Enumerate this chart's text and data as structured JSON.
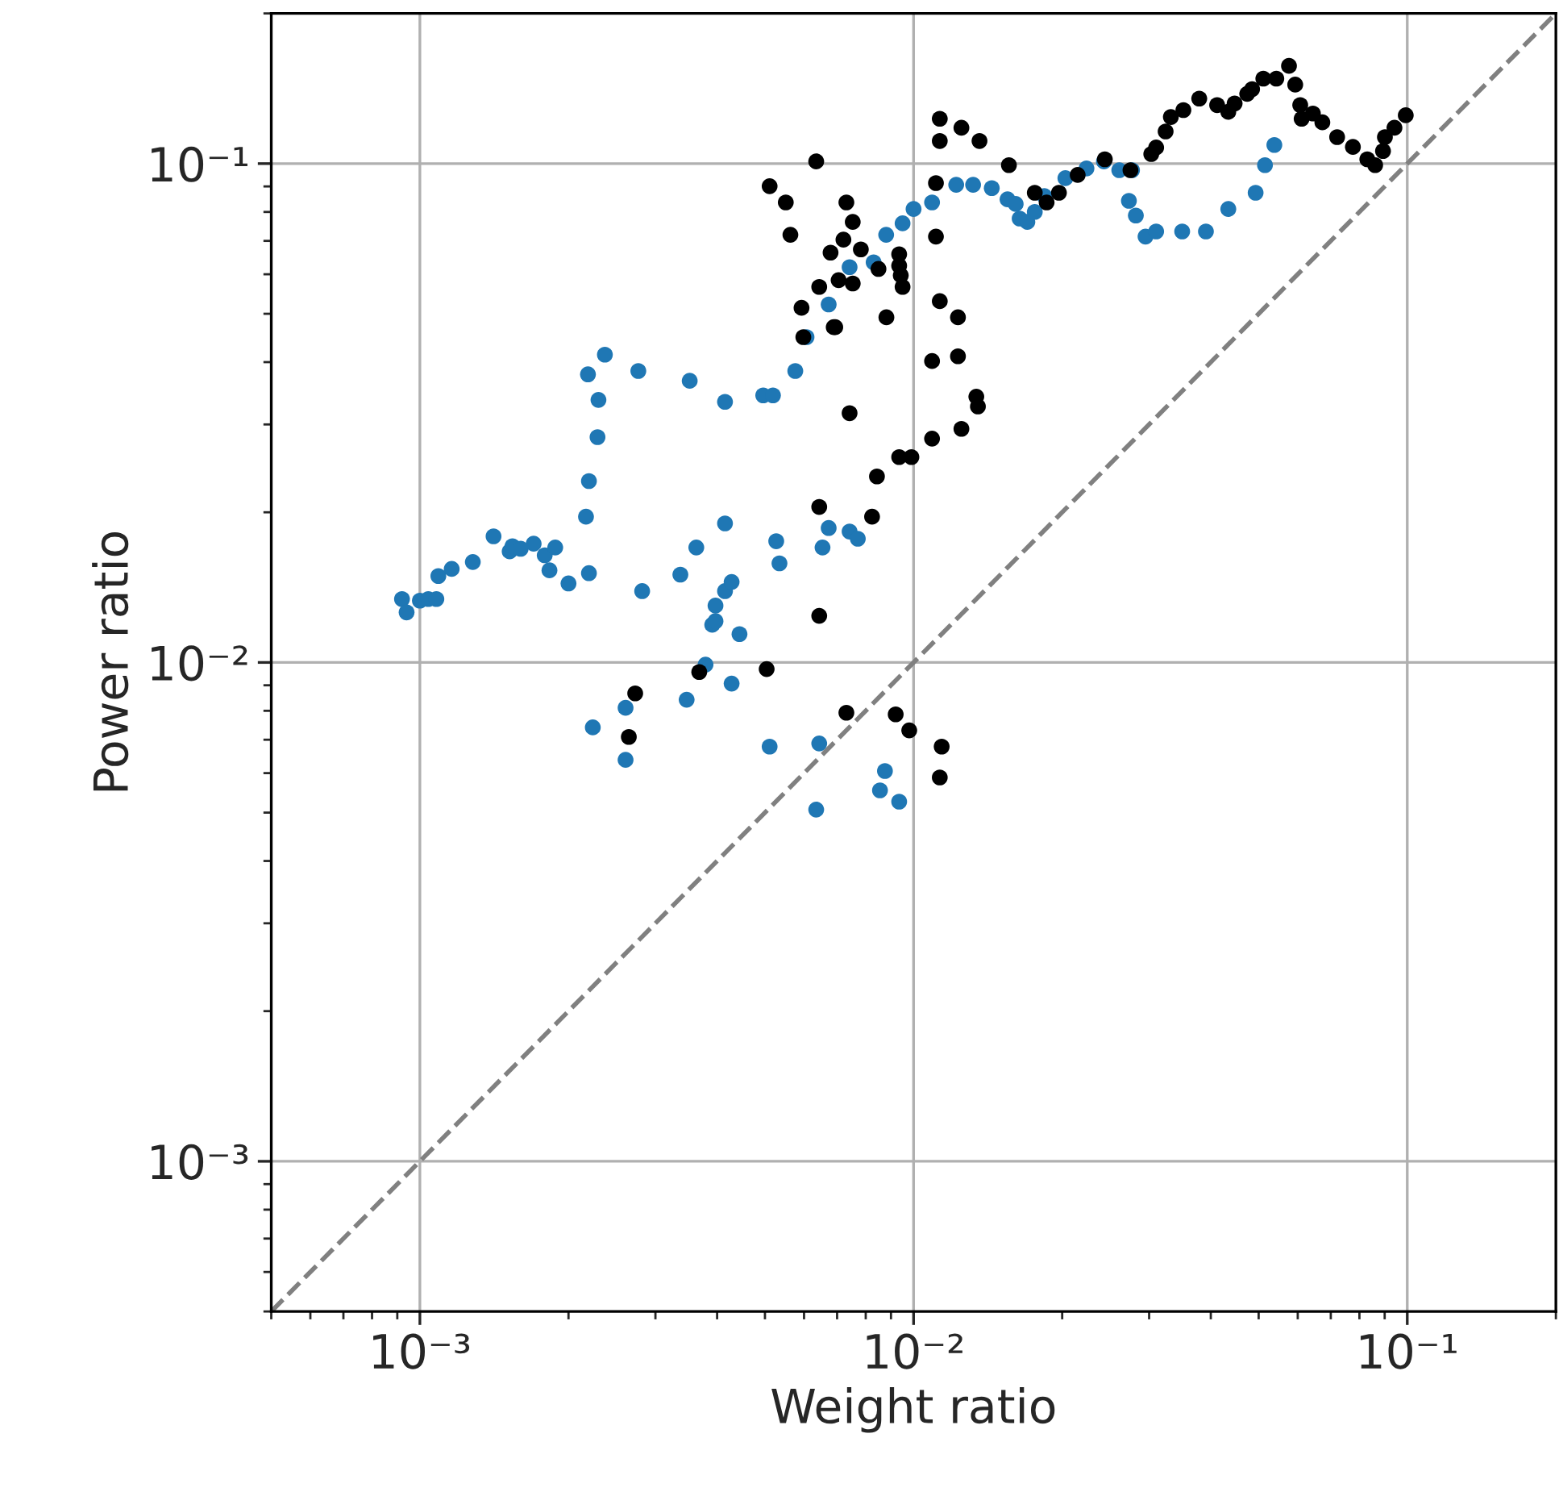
{
  "chart_data": {
    "type": "scatter",
    "xlabel": "Weight ratio",
    "ylabel": "Power ratio",
    "log": "xy",
    "grid": true,
    "marker": "circle",
    "xlim": [
      0.0005,
      0.2
    ],
    "ylim": [
      0.0005,
      0.2
    ],
    "xticks": [
      {
        "value": 0.001,
        "label": "10⁻³"
      },
      {
        "value": 0.01,
        "label": "10⁻²"
      },
      {
        "value": 0.1,
        "label": "10⁻¹"
      }
    ],
    "yticks": [
      {
        "value": 0.001,
        "label": "10⁻³"
      },
      {
        "value": 0.01,
        "label": "10⁻²"
      },
      {
        "value": 0.1,
        "label": "10⁻¹"
      }
    ],
    "series": [
      {
        "type": "line",
        "color": "#808080",
        "line_style": "dashed",
        "marker": "none",
        "x": [
          0.0005,
          0.2
        ],
        "values": [
          0.0005,
          0.2
        ]
      },
      {
        "color": "#1f77b4",
        "x": [
          0.00092,
          0.00094,
          0.001,
          0.00104,
          0.00108,
          0.00109,
          0.00116,
          0.00128,
          0.00141,
          0.00152,
          0.00154,
          0.0016,
          0.0017,
          0.00179,
          0.00183,
          0.00188,
          0.002,
          0.0022,
          0.00217,
          0.0022,
          0.00229,
          0.0023,
          0.00219,
          0.00237,
          0.00277,
          0.00352,
          0.00415,
          0.00496,
          0.00519,
          0.00576,
          0.00607,
          0.00673,
          0.00742,
          0.0083,
          0.0088,
          0.0095,
          0.01,
          0.0109,
          0.0122,
          0.0132,
          0.0144,
          0.0155,
          0.0161,
          0.0164,
          0.017,
          0.0176,
          0.0184,
          0.0203,
          0.0224,
          0.0243,
          0.0261,
          0.0277,
          0.0273,
          0.0282,
          0.0295,
          0.031,
          0.035,
          0.0391,
          0.0434,
          0.0493,
          0.0515,
          0.0538,
          0.00224,
          0.00261,
          0.00261,
          0.00347,
          0.00428,
          0.00379,
          0.00444,
          0.00391,
          0.00397,
          0.00397,
          0.00415,
          0.00428,
          0.00337,
          0.00282,
          0.00363,
          0.00415,
          0.00527,
          0.00535,
          0.00511,
          0.00644,
          0.00635,
          0.00654,
          0.00673,
          0.00742,
          0.00771,
          0.00875,
          0.00855,
          0.00935
        ],
        "values": [
          0.0134,
          0.0126,
          0.0133,
          0.0134,
          0.0134,
          0.0149,
          0.0154,
          0.0159,
          0.0179,
          0.0167,
          0.0171,
          0.0169,
          0.0173,
          0.0164,
          0.0153,
          0.017,
          0.0144,
          0.0151,
          0.0196,
          0.0231,
          0.0283,
          0.0336,
          0.0378,
          0.0414,
          0.0384,
          0.0367,
          0.0333,
          0.0343,
          0.0343,
          0.0384,
          0.0449,
          0.0522,
          0.062,
          0.0634,
          0.072,
          0.0759,
          0.0811,
          0.0836,
          0.0907,
          0.0907,
          0.0893,
          0.0848,
          0.083,
          0.0776,
          0.0764,
          0.08,
          0.0861,
          0.0935,
          0.0978,
          0.101,
          0.097,
          0.097,
          0.0842,
          0.0787,
          0.0714,
          0.0731,
          0.0731,
          0.0731,
          0.0811,
          0.0874,
          0.0993,
          0.109,
          0.00741,
          0.00811,
          0.00638,
          0.00842,
          0.00907,
          0.0099,
          0.0114,
          0.0119,
          0.0121,
          0.013,
          0.0139,
          0.0145,
          0.015,
          0.0139,
          0.017,
          0.019,
          0.0175,
          0.0158,
          0.00678,
          0.00688,
          0.00507,
          0.017,
          0.0186,
          0.0183,
          0.0177,
          0.00606,
          0.00554,
          0.00526
        ]
      },
      {
        "color": "#000000",
        "x": [
          0.00694,
          0.00742,
          0.00644,
          0.00644,
          0.00504,
          0.00368,
          0.00273,
          0.00265,
          0.00731,
          0.00635,
          0.00511,
          0.00551,
          0.00563,
          0.00731,
          0.00753,
          0.00721,
          0.00679,
          0.00782,
          0.00849,
          0.00935,
          0.00935,
          0.00942,
          0.0095,
          0.00705,
          0.00753,
          0.00644,
          0.00593,
          0.00689,
          0.00881,
          0.00598,
          0.0113,
          0.0113,
          0.0125,
          0.0136,
          0.0156,
          0.0111,
          0.0111,
          0.0113,
          0.0123,
          0.0109,
          0.0123,
          0.0134,
          0.0135,
          0.0125,
          0.0109,
          0.00935,
          0.0099,
          0.00843,
          0.00824,
          0.0092,
          0.0098,
          0.0114,
          0.0113,
          0.0176,
          0.0186,
          0.0197,
          0.0215,
          0.0244,
          0.0275,
          0.0303,
          0.031,
          0.0324,
          0.0332,
          0.0352,
          0.0379,
          0.0412,
          0.0434,
          0.0447,
          0.0474,
          0.0485,
          0.0511,
          0.0543,
          0.0576,
          0.0593,
          0.0607,
          0.0611,
          0.0644,
          0.0673,
          0.0721,
          0.0776,
          0.083,
          0.0861,
          0.0893,
          0.0901,
          0.0942,
          0.0993
        ],
        "values": [
          0.047,
          0.0316,
          0.0205,
          0.0124,
          0.0097,
          0.00957,
          0.00867,
          0.00709,
          0.00793,
          0.101,
          0.0901,
          0.0836,
          0.072,
          0.0836,
          0.0764,
          0.0704,
          0.0663,
          0.0673,
          0.0615,
          0.0658,
          0.0624,
          0.0597,
          0.0566,
          0.0584,
          0.0575,
          0.0566,
          0.0514,
          0.047,
          0.0492,
          0.0449,
          0.123,
          0.111,
          0.118,
          0.111,
          0.0993,
          0.0914,
          0.0714,
          0.053,
          0.0492,
          0.0402,
          0.0411,
          0.0341,
          0.0326,
          0.0294,
          0.0281,
          0.0258,
          0.0258,
          0.0236,
          0.0196,
          0.00787,
          0.00731,
          0.00678,
          0.00588,
          0.0874,
          0.0836,
          0.0874,
          0.0949,
          0.102,
          0.097,
          0.1045,
          0.1077,
          0.116,
          0.124,
          0.128,
          0.135,
          0.131,
          0.127,
          0.132,
          0.138,
          0.141,
          0.148,
          0.148,
          0.157,
          0.144,
          0.131,
          0.123,
          0.126,
          0.121,
          0.113,
          0.108,
          0.102,
          0.0993,
          0.106,
          0.113,
          0.118,
          0.125
        ]
      }
    ]
  }
}
